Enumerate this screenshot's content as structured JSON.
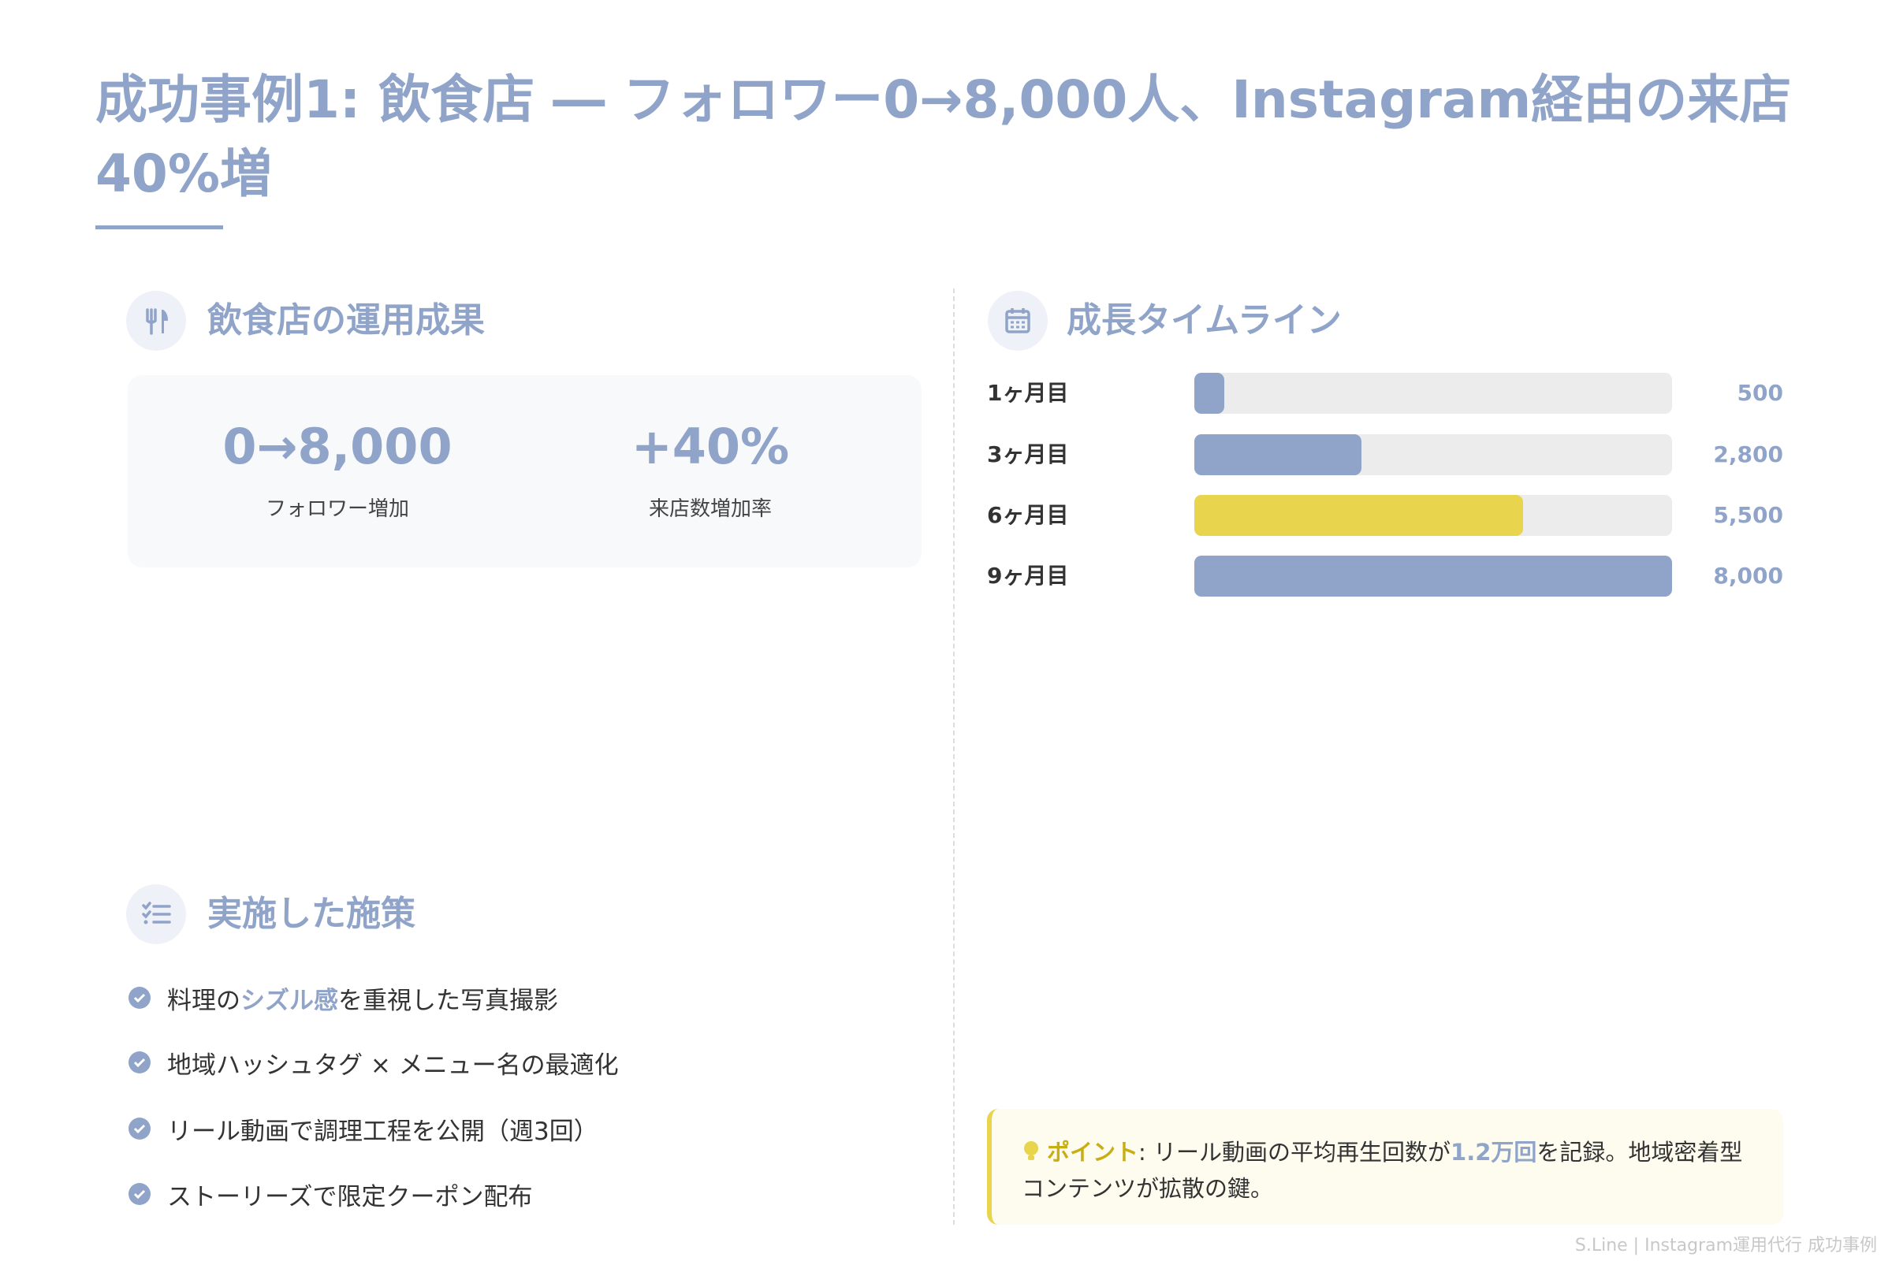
{
  "title": "成功事例1: 飲食店 ― フォロワー0→8,000人、Instagram経由の来店40%増",
  "results": {
    "heading": "飲食店の運用成果",
    "stats": [
      {
        "value": "0→8,000",
        "label": "フォロワー増加"
      },
      {
        "value": "+40%",
        "label": "来店数増加率"
      }
    ]
  },
  "measures": {
    "heading": "実施した施策",
    "items": [
      [
        "料理の",
        "シズル感",
        "を重視した写真撮影"
      ],
      [
        "地域ハッシュタグ × メニュー名の最適化"
      ],
      [
        "リール動画で調理工程を公開（週3回）"
      ],
      [
        "ストーリーズで限定クーポン配布"
      ]
    ]
  },
  "chart_data": {
    "type": "bar",
    "title": "成長タイムライン",
    "categories": [
      "1ヶ月目",
      "3ヶ月目",
      "6ヶ月目",
      "9ヶ月目"
    ],
    "values": [
      500,
      2800,
      5500,
      8000
    ],
    "value_labels": [
      "500",
      "2,800",
      "5,500",
      "8,000"
    ],
    "colors": [
      "#8fa4c8",
      "#8fa4c8",
      "#e8d44d",
      "#8fa4c8"
    ],
    "xlim": [
      0,
      8000
    ]
  },
  "note": {
    "label": "ポイント",
    "parts": [
      ": リール動画の平均再生回数が",
      "1.2万回",
      "を記録。地域密着型コンテンツが拡散の鍵。"
    ]
  },
  "footer": "S.Line | Instagram運用代行 成功事例"
}
